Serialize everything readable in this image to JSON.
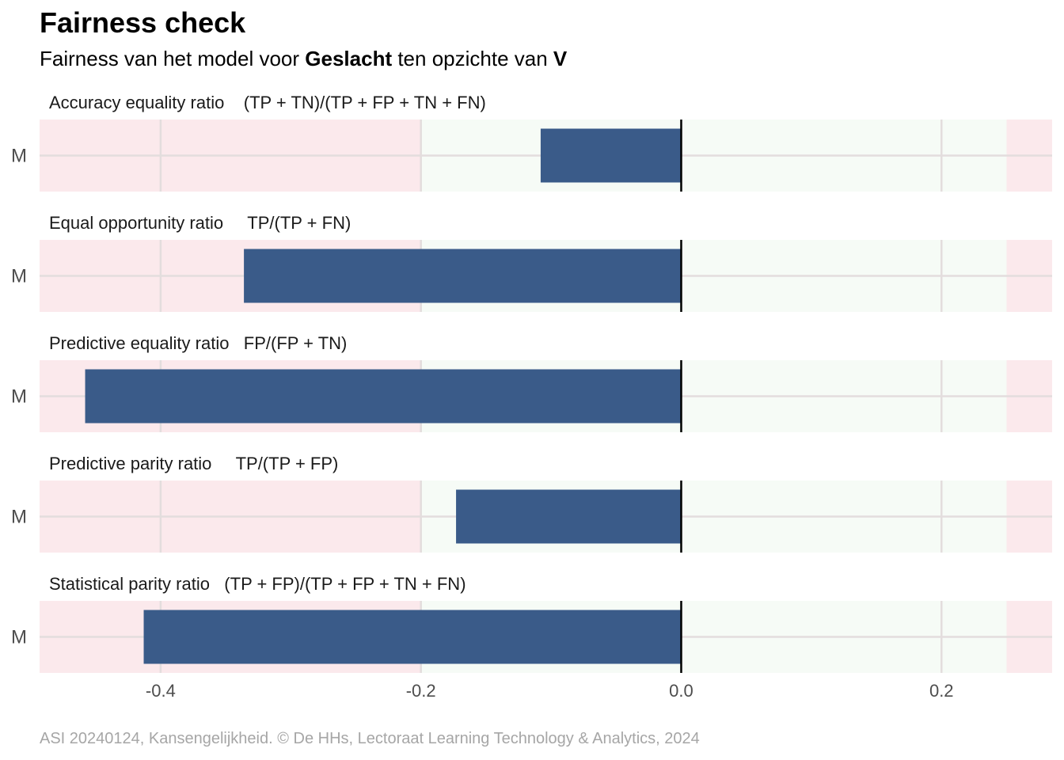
{
  "title": "Fairness check",
  "subtitle": {
    "prefix": "Fairness van het model voor ",
    "variable": "Geslacht",
    "middle": " ten opzichte van ",
    "reference": "V"
  },
  "caption": "ASI 20240124, Kansengelijkheid. © De HHs, Lectoraat Learning Technology & Analytics, 2024",
  "colors": {
    "bar": "#3a5b89",
    "unfair_zone": "#fbe9ec",
    "fair_zone": "#f6fbf6",
    "zero_line": "#000000",
    "grid": "#e3dddd"
  },
  "chart_data": {
    "type": "bar",
    "orientation": "horizontal",
    "xlim": [
      -0.493,
      0.285
    ],
    "x_ticks": [
      -0.4,
      -0.2,
      0.0,
      0.2
    ],
    "x_tick_labels": [
      "-0.4",
      "-0.2",
      "0.0",
      "0.2"
    ],
    "fair_range": [
      -0.2,
      0.25
    ],
    "facets": [
      {
        "title": "Accuracy equality ratio    (TP + TN)/(TP + FP + TN + FN)",
        "category": "M",
        "value": -0.108
      },
      {
        "title": "Equal opportunity ratio     TP/(TP + FN)",
        "category": "M",
        "value": -0.336
      },
      {
        "title": "Predictive equality ratio   FP/(FP + TN)",
        "category": "M",
        "value": -0.458
      },
      {
        "title": "Predictive parity ratio     TP/(TP + FP)",
        "category": "M",
        "value": -0.173
      },
      {
        "title": "Statistical parity ratio   (TP + FP)/(TP + FP + TN + FN)",
        "category": "M",
        "value": -0.413
      }
    ]
  }
}
